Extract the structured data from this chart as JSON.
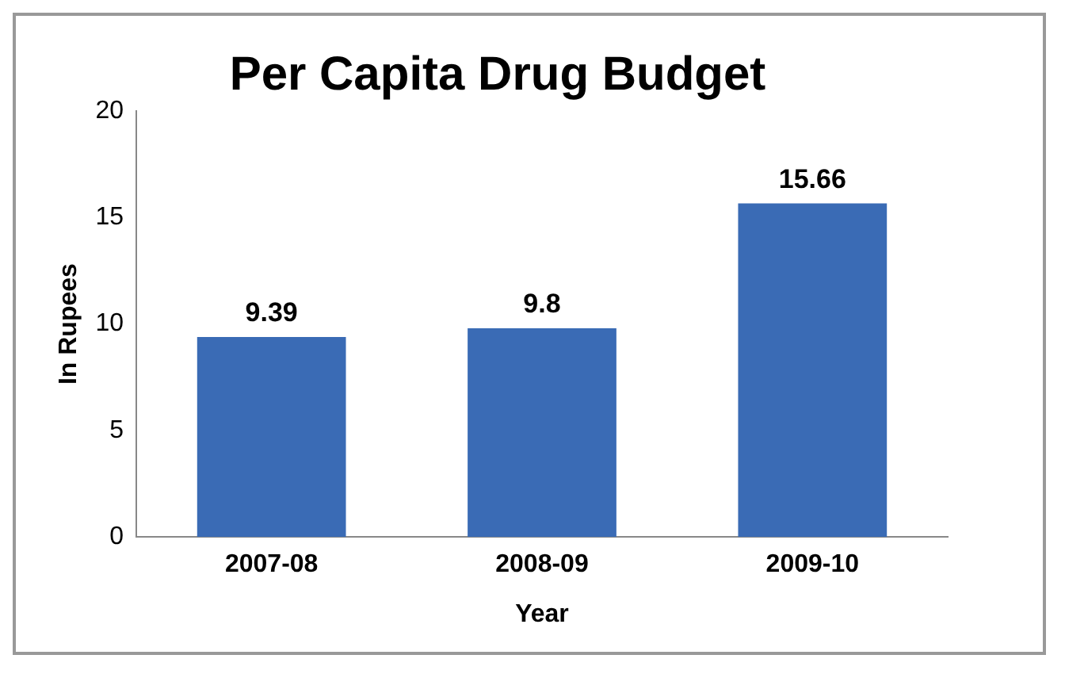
{
  "chart_data": {
    "type": "bar",
    "title": "Per Capita Drug Budget",
    "xlabel": "Year",
    "ylabel": "In Rupees",
    "categories": [
      "2007-08",
      "2008-09",
      "2009-10"
    ],
    "values": [
      9.39,
      9.8,
      15.66
    ],
    "color": "#3a6bb5",
    "ylim": [
      0,
      20
    ],
    "yticks": [
      0,
      5,
      10,
      15,
      20
    ],
    "grid": false,
    "data_labels": true
  }
}
